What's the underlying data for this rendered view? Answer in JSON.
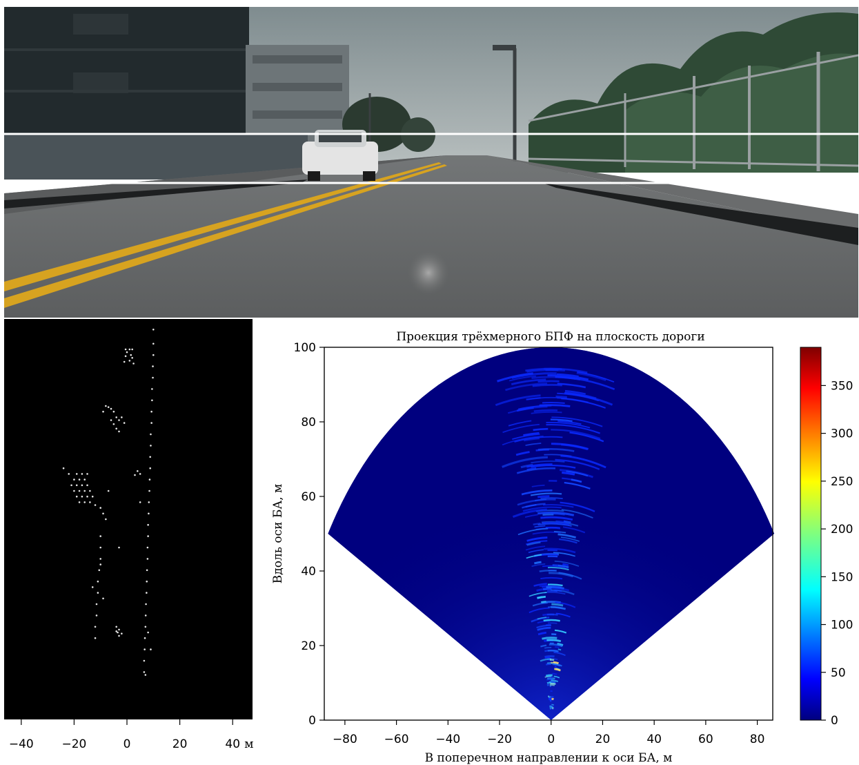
{
  "colors": {
    "lidar_background": "#000000",
    "lidar_points": "#e6e6e6",
    "fft_background": "#00007f",
    "guide_lines": "#ffffff",
    "road_marking": "#d7a320"
  },
  "chart_data": [
    {
      "type": "scatter",
      "title": "",
      "xlabel": "",
      "x_unit": "м",
      "ylabel": "",
      "xlim": [
        -45,
        47
      ],
      "xticks": [
        -40,
        -20,
        0,
        20,
        40
      ],
      "xtick_labels": [
        "−40",
        "−20",
        "0",
        "20",
        "40"
      ],
      "grid": false,
      "series": [
        {
          "points": [
            [
              -0.5,
              30
            ],
            [
              1,
              30
            ],
            [
              2,
              30
            ],
            [
              0,
              29.5
            ],
            [
              1.5,
              29
            ],
            [
              -0.5,
              28.8
            ],
            [
              2,
              28.5
            ],
            [
              1,
              28
            ],
            [
              -1,
              27.8
            ],
            [
              2.5,
              27.5
            ],
            [
              -8,
              20
            ],
            [
              -7,
              19.8
            ],
            [
              -6,
              19.5
            ],
            [
              -5,
              19
            ],
            [
              -9,
              19
            ],
            [
              -4,
              18
            ],
            [
              -6,
              17.5
            ],
            [
              -5,
              16.8
            ],
            [
              -4,
              16
            ],
            [
              -3,
              15.5
            ],
            [
              -2,
              18
            ],
            [
              -1,
              17
            ],
            [
              -3,
              17.5
            ],
            [
              -24,
              9
            ],
            [
              -22,
              8
            ],
            [
              -19,
              8
            ],
            [
              -17,
              8
            ],
            [
              -15,
              8
            ],
            [
              -20,
              7
            ],
            [
              -18,
              7
            ],
            [
              -16,
              7
            ],
            [
              -21,
              6
            ],
            [
              -19,
              6
            ],
            [
              -17,
              6
            ],
            [
              -15,
              6
            ],
            [
              -20,
              5
            ],
            [
              -18,
              5
            ],
            [
              -16,
              5
            ],
            [
              -14,
              5
            ],
            [
              -19,
              4
            ],
            [
              -17,
              4
            ],
            [
              -15,
              4
            ],
            [
              -13,
              4
            ],
            [
              -18,
              3
            ],
            [
              -16,
              3
            ],
            [
              -14,
              3
            ],
            [
              -12,
              2.5
            ],
            [
              -10,
              2
            ],
            [
              -9,
              1
            ],
            [
              -8,
              0
            ],
            [
              -7,
              5
            ],
            [
              4,
              8.5
            ],
            [
              5,
              8
            ],
            [
              3,
              7.8
            ],
            [
              5,
              3
            ],
            [
              -3,
              -5
            ],
            [
              -10,
              -3
            ],
            [
              -10,
              -5
            ],
            [
              -10,
              -7
            ],
            [
              -10.5,
              -9
            ],
            [
              -11,
              -11
            ],
            [
              -11,
              -13
            ],
            [
              -11.5,
              -15
            ],
            [
              -11.5,
              -17
            ],
            [
              -12,
              -19
            ],
            [
              -12,
              -21
            ],
            [
              -13,
              -12
            ],
            [
              -10,
              -8
            ],
            [
              -9,
              -14
            ],
            [
              -4,
              -19
            ],
            [
              -3,
              -19.5
            ],
            [
              -3.5,
              -20
            ],
            [
              -2,
              -20.2
            ],
            [
              -3,
              -20.6
            ],
            [
              -4,
              -19.8
            ]
          ],
          "column_points": [
            [
              10,
              33.5
            ],
            [
              10,
              31
            ],
            [
              10,
              29
            ],
            [
              9.8,
              27
            ],
            [
              9.8,
              25
            ],
            [
              9.5,
              23
            ],
            [
              9.5,
              21
            ],
            [
              9.3,
              19
            ],
            [
              9.3,
              17
            ],
            [
              9,
              15
            ],
            [
              9,
              13
            ],
            [
              8.8,
              11
            ],
            [
              8.8,
              9
            ],
            [
              8.6,
              7
            ],
            [
              8.5,
              5
            ],
            [
              8.3,
              3
            ],
            [
              8.2,
              1
            ],
            [
              8,
              -1
            ],
            [
              8,
              -3
            ],
            [
              7.8,
              -5
            ],
            [
              7.8,
              -7
            ],
            [
              7.6,
              -9
            ],
            [
              7.5,
              -11
            ],
            [
              7.4,
              -13
            ],
            [
              7.2,
              -15
            ],
            [
              7.1,
              -17
            ],
            [
              7,
              -19
            ],
            [
              6.8,
              -21
            ],
            [
              6.7,
              -23
            ],
            [
              6.5,
              -25
            ],
            [
              6.5,
              -27
            ],
            [
              8,
              -20
            ],
            [
              9,
              -23
            ],
            [
              7,
              -27.5
            ]
          ]
        }
      ]
    },
    {
      "type": "heatmap",
      "title": "Проекция трёхмерного БПФ на плоскость дороги",
      "xlabel": "В поперечном направлении к оси БА, м",
      "ylabel": "Вдоль оси БА, м",
      "xlim": [
        -88,
        86
      ],
      "ylim": [
        0,
        100
      ],
      "xticks": [
        -80,
        -60,
        -40,
        -20,
        0,
        20,
        40,
        60,
        80
      ],
      "xtick_labels": [
        "−80",
        "−60",
        "−40",
        "−20",
        "0",
        "20",
        "40",
        "60",
        "80"
      ],
      "yticks": [
        0,
        20,
        40,
        60,
        80,
        100
      ],
      "sector": {
        "max_range": 100,
        "half_angle_deg": 60
      },
      "colorbar": {
        "colormap": "jet",
        "range": [
          0,
          390
        ],
        "ticks": [
          0,
          50,
          100,
          150,
          200,
          250,
          300,
          350
        ],
        "tick_labels": [
          "0",
          "50",
          "100",
          "150",
          "200",
          "250",
          "300",
          "350"
        ]
      },
      "grid": false
    }
  ]
}
